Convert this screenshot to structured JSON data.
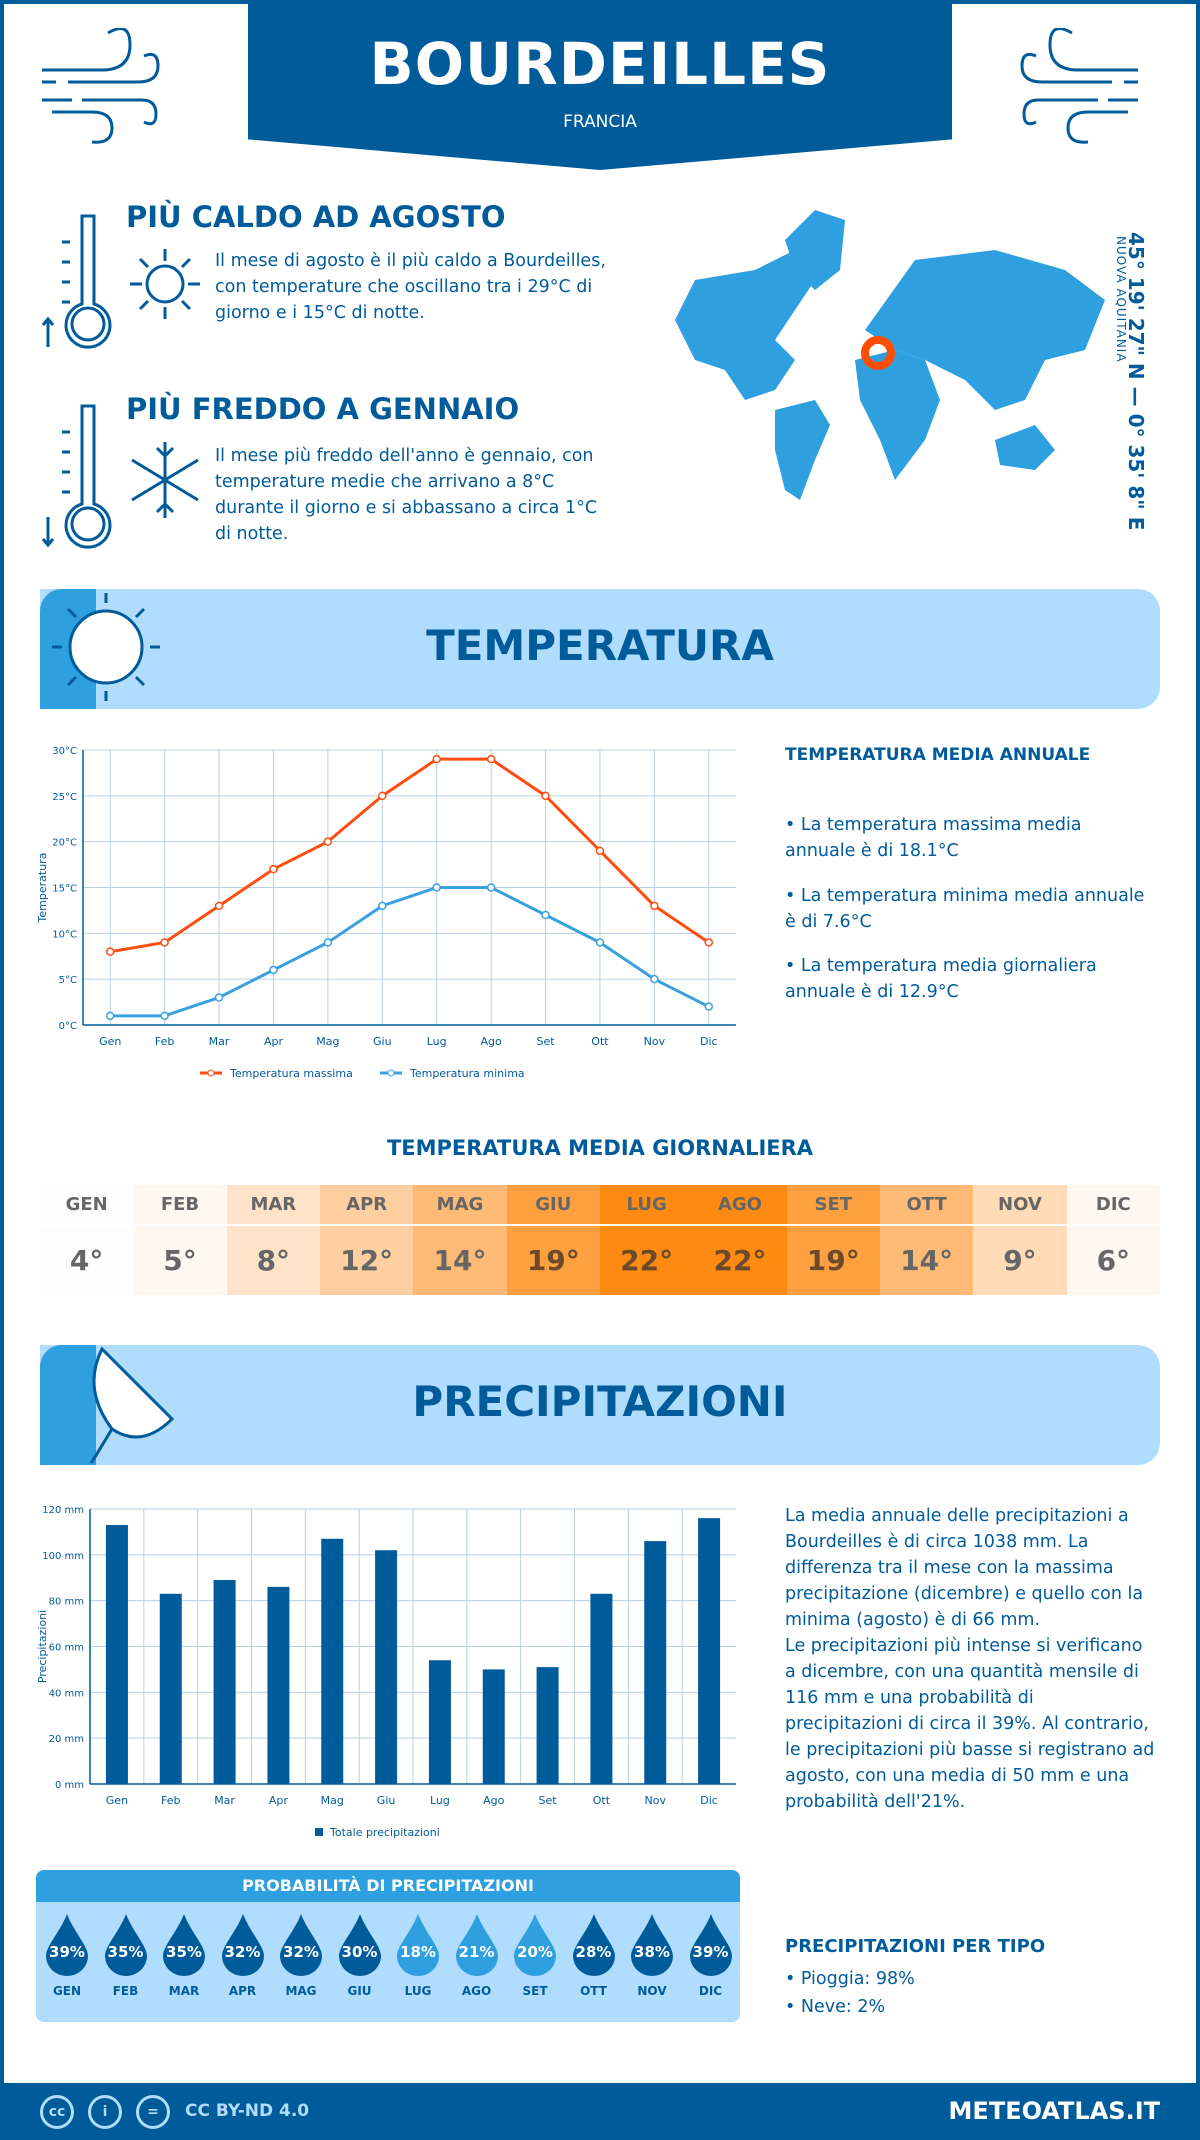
{
  "header": {
    "title": "BOURDEILLES",
    "country": "FRANCIA"
  },
  "hot": {
    "title": "PIÙ CALDO AD AGOSTO",
    "text": "Il mese di agosto è il più caldo a Bourdeilles, con temperature che oscillano tra i 29°C di giorno e i 15°C di notte."
  },
  "cold": {
    "title": "PIÙ FREDDO A GENNAIO",
    "text": "Il mese più freddo dell'anno è gennaio, con temperature medie che arrivano a 8°C durante il giorno e si abbassano a circa 1°C di notte."
  },
  "map": {
    "coords": "45° 19' 27\" N — 0° 35' 8\" E",
    "region": "NUOVA AQUITANIA",
    "marker_color": "#ff4d00"
  },
  "temperature_section": {
    "title": "TEMPERATURA",
    "annual_title": "TEMPERATURA MEDIA ANNUALE",
    "bullets": [
      "• La temperatura massima media annuale è di 18.1°C",
      "• La temperatura minima media annuale è di 7.6°C",
      "• La temperatura media giornaliera annuale è di 12.9°C"
    ],
    "daily_title": "TEMPERATURA MEDIA GIORNALIERA",
    "daily": [
      {
        "m": "GEN",
        "v": "4°",
        "c": "#fdfdfd"
      },
      {
        "m": "FEB",
        "v": "5°",
        "c": "#fff8f1"
      },
      {
        "m": "MAR",
        "v": "8°",
        "c": "#ffe3c8"
      },
      {
        "m": "APR",
        "v": "12°",
        "c": "#ffcf9f"
      },
      {
        "m": "MAG",
        "v": "14°",
        "c": "#ffba76"
      },
      {
        "m": "GIU",
        "v": "19°",
        "c": "#ffa040"
      },
      {
        "m": "LUG",
        "v": "22°",
        "c": "#ff8a12"
      },
      {
        "m": "AGO",
        "v": "22°",
        "c": "#ff8a12"
      },
      {
        "m": "SET",
        "v": "19°",
        "c": "#ffa040"
      },
      {
        "m": "OTT",
        "v": "14°",
        "c": "#ffba76"
      },
      {
        "m": "NOV",
        "v": "9°",
        "c": "#ffdbb8"
      },
      {
        "m": "DIC",
        "v": "6°",
        "c": "#fff8f1"
      }
    ]
  },
  "precip_section": {
    "title": "PRECIPITAZIONI",
    "text1": "La media annuale delle precipitazioni a Bourdeilles è di circa 1038 mm. La differenza tra il mese con la massima precipitazione (dicembre) e quello con la minima (agosto) è di 66 mm.",
    "text2": "Le precipitazioni più intense si verificano a dicembre, con una quantità mensile di 116 mm e una probabilità di precipitazioni di circa il 39%. Al contrario, le precipitazioni più basse si registrano ad agosto, con una media di 50 mm e una probabilità dell'21%.",
    "prob_title": "PROBABILITÀ DI PRECIPITAZIONI",
    "prob": [
      {
        "m": "GEN",
        "v": "39%"
      },
      {
        "m": "FEB",
        "v": "35%"
      },
      {
        "m": "MAR",
        "v": "35%"
      },
      {
        "m": "APR",
        "v": "32%"
      },
      {
        "m": "MAG",
        "v": "32%"
      },
      {
        "m": "GIU",
        "v": "30%"
      },
      {
        "m": "LUG",
        "v": "18%"
      },
      {
        "m": "AGO",
        "v": "21%"
      },
      {
        "m": "SET",
        "v": "20%"
      },
      {
        "m": "OTT",
        "v": "28%"
      },
      {
        "m": "NOV",
        "v": "38%"
      },
      {
        "m": "DIC",
        "v": "39%"
      }
    ],
    "type_title": "PRECIPITAZIONI PER TIPO",
    "types": [
      "• Pioggia: 98%",
      "• Neve: 2%"
    ]
  },
  "chart_data": [
    {
      "type": "line",
      "categories": [
        "Gen",
        "Feb",
        "Mar",
        "Apr",
        "Mag",
        "Giu",
        "Lug",
        "Ago",
        "Set",
        "Ott",
        "Nov",
        "Dic"
      ],
      "ylabel": "Temperatura",
      "ylim": [
        0,
        30
      ],
      "yticks": [
        "0°C",
        "5°C",
        "10°C",
        "15°C",
        "20°C",
        "25°C",
        "30°C"
      ],
      "grid": true,
      "legend": "bottom",
      "series": [
        {
          "name": "Temperatura massima",
          "color": "#ff4d12",
          "values": [
            8,
            9,
            13,
            17,
            20,
            25,
            29,
            29,
            25,
            19,
            13,
            9
          ]
        },
        {
          "name": "Temperatura minima",
          "color": "#3aa0e0",
          "values": [
            1,
            1,
            3,
            6,
            9,
            13,
            15,
            15,
            12,
            9,
            5,
            2
          ]
        }
      ]
    },
    {
      "type": "bar",
      "categories": [
        "Gen",
        "Feb",
        "Mar",
        "Apr",
        "Mag",
        "Giu",
        "Lug",
        "Ago",
        "Set",
        "Ott",
        "Nov",
        "Dic"
      ],
      "ylabel": "Precipitazioni",
      "ylim": [
        0,
        120
      ],
      "yticks": [
        "0 mm",
        "20 mm",
        "40 mm",
        "60 mm",
        "80 mm",
        "100 mm",
        "120 mm"
      ],
      "grid": true,
      "legend": "bottom",
      "series": [
        {
          "name": "Totale precipitazioni",
          "color": "#005b9a",
          "values": [
            113,
            83,
            89,
            86,
            107,
            102,
            54,
            50,
            51,
            83,
            106,
            116
          ]
        }
      ]
    }
  ],
  "footer": {
    "license": "CC BY-ND 4.0",
    "site": "METEOATLAS.IT"
  }
}
